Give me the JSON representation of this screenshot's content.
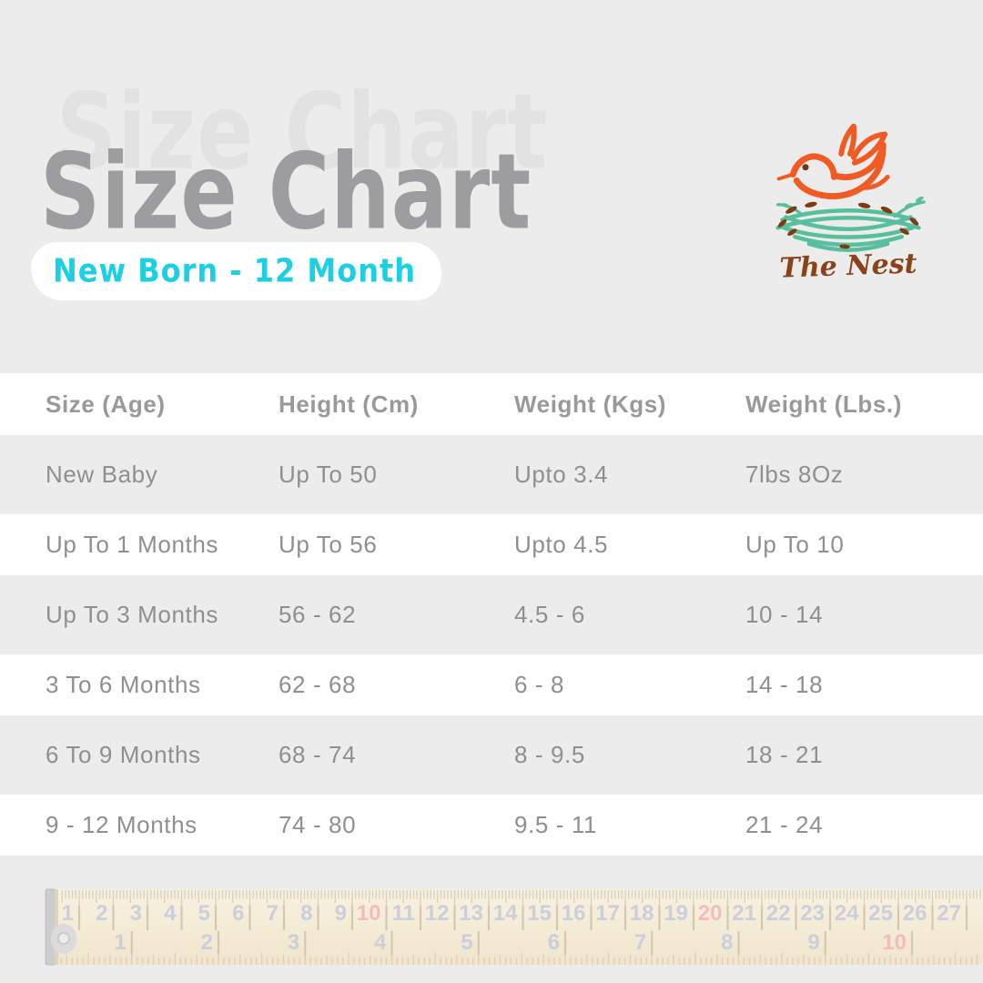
{
  "page": {
    "background": "#ececec"
  },
  "colors": {
    "bg": "#ececec",
    "title": "#9d9d9f",
    "ghost": "#e2e2e2",
    "accent": "#1ccfe2",
    "row-text": "#8f8f8f",
    "header-text": "#999999",
    "orange": "#f15a22",
    "teal": "#58bf9e",
    "brown": "#7d3c10",
    "brown-text": "#8a4319",
    "ruler-body1": "#faf2e1",
    "ruler-body2": "#f3e5c6",
    "ruler-tick": "#d8cdb5",
    "ruler-bar": "#cfc3a7",
    "ruler-num": "#c5cad6",
    "ruler-red": "#f4b4b6",
    "metal": "#c8c8c8"
  },
  "header": {
    "title": "Size Chart",
    "subtitle": "New Born - 12 Month"
  },
  "logo": {
    "name": "The Nest"
  },
  "table": {
    "columns": [
      "Size (Age)",
      "Height (Cm)",
      "Weight (Kgs)",
      "Weight (Lbs.)"
    ],
    "rows": [
      [
        "New Baby",
        "Up To 50",
        "Upto 3.4",
        "7lbs 8Oz"
      ],
      [
        "Up To 1 Months",
        "Up To 56",
        "Upto 4.5",
        "Up To 10"
      ],
      [
        "Up To 3 Months",
        "56 - 62",
        "4.5 - 6",
        "10 - 14"
      ],
      [
        "3 To 6 Months",
        "62 - 68",
        "6 - 8",
        "14 - 18"
      ],
      [
        "6 To 9 Months",
        "68 - 74",
        "8 - 9.5",
        "18 - 21"
      ],
      [
        "9 - 12 Months",
        "74 - 80",
        "9.5 - 11",
        "21 - 24"
      ]
    ]
  },
  "ruler": {
    "cm_numbers_max": 27,
    "cm_red_numbers": [
      10,
      20
    ],
    "inch_numbers_max": 10,
    "inch_red_numbers": [
      10
    ]
  }
}
